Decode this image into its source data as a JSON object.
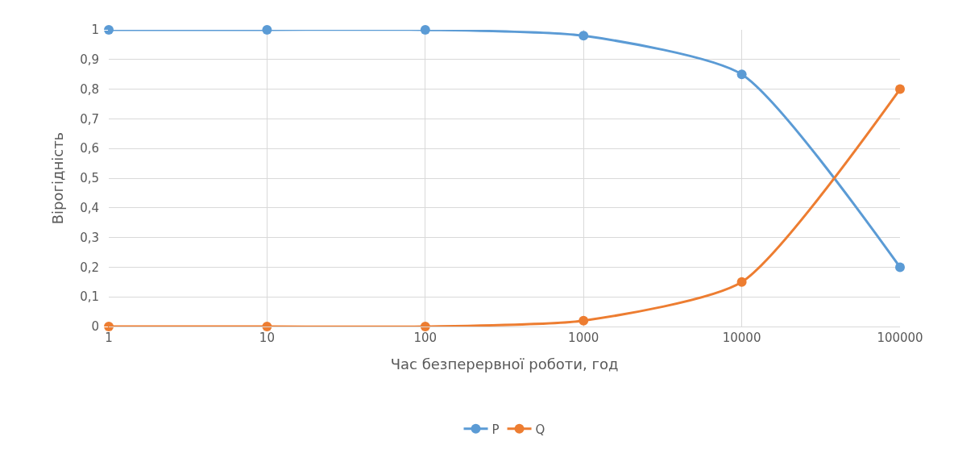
{
  "chart_data": {
    "type": "line",
    "xlabel": "Час безперервної роботи, год",
    "ylabel": "Вірогідність",
    "categories": [
      "1",
      "10",
      "100",
      "1000",
      "10000",
      "100000"
    ],
    "series": [
      {
        "name": "P",
        "color": "#5b9bd5",
        "values": [
          1,
          1,
          1,
          0.98,
          0.85,
          0.2
        ]
      },
      {
        "name": "Q",
        "color": "#ed7d31",
        "values": [
          0,
          0,
          0,
          0.02,
          0.15,
          0.8
        ]
      }
    ],
    "ylim": [
      0,
      1
    ],
    "yticks": [
      0,
      {
        "value": 0.1,
        "label": "0,1"
      },
      {
        "value": 0.2,
        "label": "0,2"
      },
      {
        "value": 0.3,
        "label": "0,3"
      },
      {
        "value": 0.4,
        "label": "0,4"
      },
      {
        "value": 0.5,
        "label": "0,5"
      },
      {
        "value": 0.6,
        "label": "0,6"
      },
      {
        "value": 0.7,
        "label": "0,7"
      },
      {
        "value": 0.8,
        "label": "0,8"
      },
      {
        "value": 0.9,
        "label": "0,9"
      },
      1
    ],
    "grid": true,
    "legend": "bottom",
    "marker": "circle",
    "line_style": "solid"
  }
}
